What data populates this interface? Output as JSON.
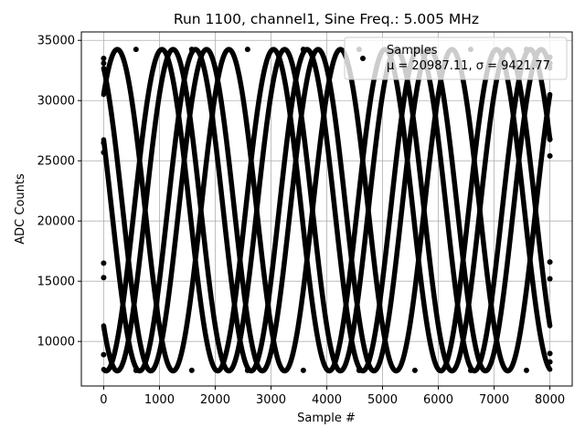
{
  "chart_data": {
    "type": "scatter",
    "title": "Run 1100, channel1, Sine Freq.: 5.005 MHz",
    "xlabel": "Sample #",
    "ylabel": "ADC Counts",
    "xlim": [
      -400,
      8400
    ],
    "ylim": [
      6300,
      35700
    ],
    "xticks": [
      0,
      1000,
      2000,
      3000,
      4000,
      5000,
      6000,
      7000,
      8000
    ],
    "yticks": [
      10000,
      15000,
      20000,
      25000,
      30000,
      35000
    ],
    "grid": true,
    "legend": {
      "placement": "upper right",
      "series_label": "Samples",
      "stats_label": "μ = 20987.11, σ = 9421.77"
    },
    "series": [
      {
        "name": "Samples",
        "color": "#000000",
        "marker": "dot",
        "model": {
          "kind": "sine_traces",
          "offset": 20900,
          "amplitude": 13350,
          "period_samples": 2000,
          "phases_deg": [
            118,
            226,
            46,
            154,
            262
          ],
          "x_range": [
            0,
            8000
          ],
          "x_step": 8
        },
        "points": [
          [
            0,
            8900
          ],
          [
            0,
            15300
          ],
          [
            0,
            16500
          ],
          [
            0,
            25700
          ],
          [
            0,
            26500
          ],
          [
            0,
            33100
          ],
          [
            0,
            33500
          ],
          [
            580,
            34250
          ],
          [
            1580,
            34250
          ],
          [
            2580,
            34250
          ],
          [
            3580,
            34250
          ],
          [
            4580,
            34250
          ],
          [
            5580,
            34250
          ],
          [
            6580,
            34250
          ],
          [
            7580,
            34250
          ],
          [
            580,
            7600
          ],
          [
            1580,
            7600
          ],
          [
            2580,
            7600
          ],
          [
            3580,
            7600
          ],
          [
            4580,
            7600
          ],
          [
            5580,
            7600
          ],
          [
            6580,
            7600
          ],
          [
            7580,
            7600
          ],
          [
            8000,
            8300
          ],
          [
            8000,
            9000
          ],
          [
            8000,
            15200
          ],
          [
            8000,
            16600
          ],
          [
            8000,
            25400
          ],
          [
            8000,
            26800
          ],
          [
            8000,
            33100
          ],
          [
            8000,
            33600
          ]
        ]
      }
    ]
  }
}
